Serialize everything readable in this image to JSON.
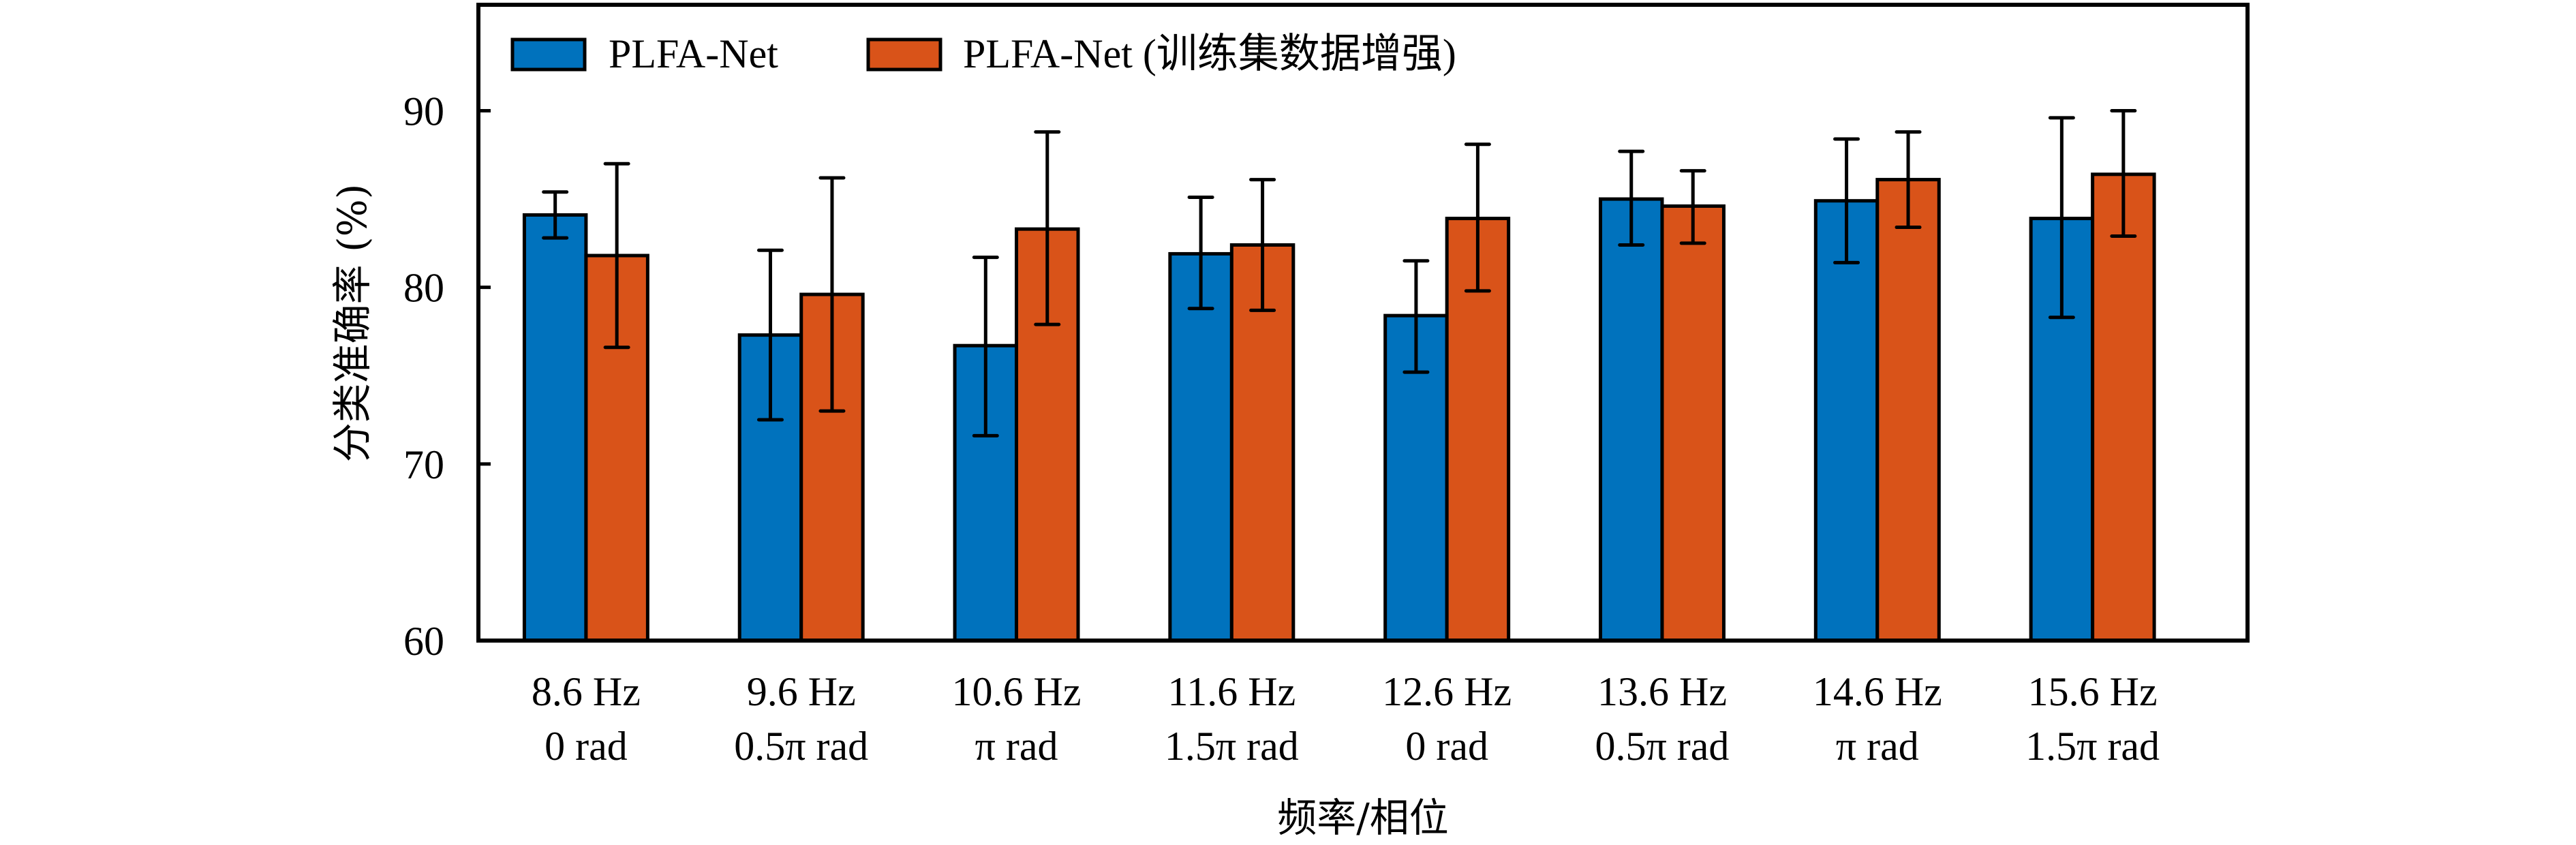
{
  "chart_data": {
    "type": "bar",
    "title": "",
    "xlabel": "频率/相位",
    "ylabel": "分类准确率 (%)",
    "ylim": [
      60,
      96
    ],
    "yticks": [
      60,
      70,
      80,
      90
    ],
    "grid": false,
    "legend_position": "top-left",
    "categories": [
      {
        "freq": "8.6 Hz",
        "phase": "0 rad"
      },
      {
        "freq": "9.6 Hz",
        "phase": "0.5π rad"
      },
      {
        "freq": "10.6 Hz",
        "phase": "π rad"
      },
      {
        "freq": "11.6 Hz",
        "phase": "1.5π rad"
      },
      {
        "freq": "12.6 Hz",
        "phase": "0 rad"
      },
      {
        "freq": "13.6 Hz",
        "phase": "0.5π rad"
      },
      {
        "freq": "14.6 Hz",
        "phase": "π rad"
      },
      {
        "freq": "15.6 Hz",
        "phase": "1.5π rad"
      }
    ],
    "series": [
      {
        "name": "PLFA-Net",
        "color": "#0072BD",
        "values": [
          84.1,
          77.3,
          76.7,
          81.9,
          78.4,
          85.0,
          84.9,
          83.9
        ],
        "error_low": [
          82.8,
          72.5,
          71.6,
          78.8,
          75.2,
          82.4,
          81.4,
          78.3
        ],
        "error_high": [
          85.4,
          82.1,
          81.7,
          85.1,
          81.5,
          87.7,
          88.4,
          89.6
        ]
      },
      {
        "name": "PLFA-Net (训练集数据增强)",
        "color": "#D95319",
        "values": [
          81.8,
          79.6,
          83.3,
          82.4,
          83.9,
          84.6,
          86.1,
          86.4
        ],
        "error_low": [
          76.6,
          73.0,
          77.9,
          78.7,
          79.8,
          82.5,
          83.4,
          82.9
        ],
        "error_high": [
          87.0,
          86.2,
          88.8,
          86.1,
          88.1,
          86.6,
          88.8,
          90.0
        ]
      }
    ]
  }
}
